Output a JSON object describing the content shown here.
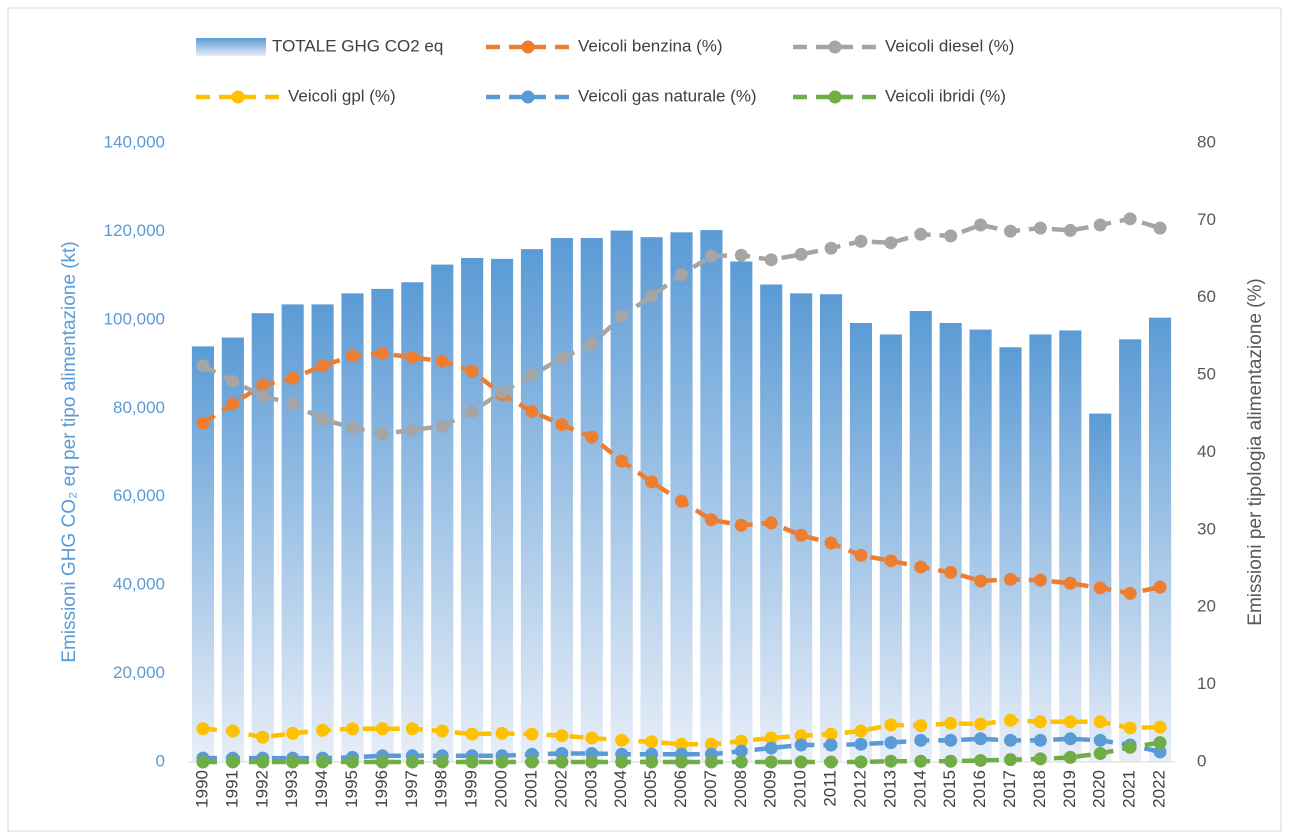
{
  "chart_data": {
    "type": "bar",
    "categories": [
      "1990",
      "1991",
      "1992",
      "1993",
      "1994",
      "1995",
      "1996",
      "1997",
      "1998",
      "1999",
      "2000",
      "2001",
      "2002",
      "2003",
      "2004",
      "2005",
      "2006",
      "2007",
      "2008",
      "2009",
      "2010",
      "2011",
      "2012",
      "2013",
      "2014",
      "2015",
      "2016",
      "2017",
      "2018",
      "2019",
      "2020",
      "2021",
      "2022"
    ],
    "series": [
      {
        "name": "TOTALE GHG CO2 eq",
        "type": "bar",
        "color": "#5b9bd5",
        "values": [
          94000,
          96000,
          101500,
          103500,
          103500,
          106000,
          107000,
          108500,
          112500,
          114000,
          113800,
          116000,
          118500,
          118500,
          120200,
          118700,
          119800,
          120300,
          113200,
          108000,
          106000,
          105800,
          99300,
          96700,
          102000,
          99300,
          97800,
          93800,
          96700,
          97600,
          78800,
          95600,
          100500
        ]
      },
      {
        "name": "Veicoli benzina (%)",
        "type": "line",
        "axis": "y2",
        "color": "#ed7d31",
        "values": [
          43.8,
          46.3,
          48.7,
          49.6,
          51.2,
          52.5,
          52.8,
          52.3,
          51.8,
          50.5,
          47.5,
          45.3,
          43.6,
          42.0,
          38.9,
          36.2,
          33.7,
          31.3,
          30.6,
          30.9,
          29.3,
          28.3,
          26.7,
          26.0,
          25.2,
          24.5,
          23.4,
          23.6,
          23.5,
          23.1,
          22.5,
          21.8,
          22.6
        ]
      },
      {
        "name": "Veicoli diesel (%)",
        "type": "line",
        "axis": "y2",
        "color": "#a5a5a5",
        "values": [
          51.2,
          49.2,
          47.3,
          46.3,
          44.3,
          43.2,
          42.4,
          42.9,
          43.4,
          45.3,
          47.8,
          50.0,
          52.2,
          54.0,
          57.6,
          60.2,
          63.0,
          65.4,
          65.5,
          64.9,
          65.6,
          66.4,
          67.3,
          67.1,
          68.2,
          68.0,
          69.4,
          68.6,
          69.0,
          68.7,
          69.4,
          70.2,
          69.0
        ]
      },
      {
        "name": "Veicoli gpl (%)",
        "type": "line",
        "axis": "y2",
        "color": "#ffc000",
        "values": [
          4.3,
          4.0,
          3.2,
          3.7,
          4.1,
          4.3,
          4.3,
          4.3,
          4.0,
          3.6,
          3.7,
          3.6,
          3.4,
          3.1,
          2.8,
          2.6,
          2.3,
          2.3,
          2.7,
          3.1,
          3.4,
          3.6,
          4.0,
          4.8,
          4.7,
          5.0,
          4.9,
          5.4,
          5.2,
          5.2,
          5.2,
          4.4,
          4.5
        ]
      },
      {
        "name": "Veicoli gas naturale (%)",
        "type": "line",
        "axis": "y2",
        "color": "#5b9bd5",
        "values": [
          0.5,
          0.5,
          0.5,
          0.5,
          0.5,
          0.6,
          0.8,
          0.8,
          0.8,
          0.8,
          0.8,
          1.0,
          1.1,
          1.1,
          1.0,
          1.0,
          1.0,
          1.0,
          1.4,
          1.8,
          2.2,
          2.2,
          2.3,
          2.5,
          2.8,
          2.8,
          3.0,
          2.8,
          2.8,
          3.0,
          2.8,
          2.2,
          1.3
        ]
      },
      {
        "name": "Veicoli ibridi (%)",
        "type": "line",
        "axis": "y2",
        "color": "#70ad47",
        "values": [
          0,
          0,
          0,
          0,
          0,
          0,
          0,
          0,
          0,
          0,
          0,
          0,
          0,
          0,
          0,
          0,
          0,
          0,
          0,
          0,
          0,
          0,
          0,
          0.1,
          0.1,
          0.1,
          0.2,
          0.3,
          0.4,
          0.6,
          1.1,
          1.9,
          2.5
        ]
      }
    ],
    "ylabel": "Emissioni GHG CO₂ eq per tipo alimentazione (kt)",
    "y2label": "Emissioni per tipologia alimentazione (%)",
    "ylim": [
      0,
      140000
    ],
    "yticks": [
      0,
      {
        "value": 20000,
        "label": "20,000"
      },
      {
        "value": 40000,
        "label": "40,000"
      },
      {
        "value": 60000,
        "label": "60,000"
      },
      {
        "value": 80000,
        "label": "80,000"
      },
      {
        "value": 100000,
        "label": "100,000"
      },
      {
        "value": 120000,
        "label": "120,000"
      },
      {
        "value": 140000,
        "label": "140,000"
      }
    ],
    "y2lim": [
      0,
      80
    ],
    "y2ticks": [
      0,
      10,
      20,
      30,
      40,
      50,
      60,
      70,
      80
    ],
    "grid": false,
    "legend": "top"
  }
}
